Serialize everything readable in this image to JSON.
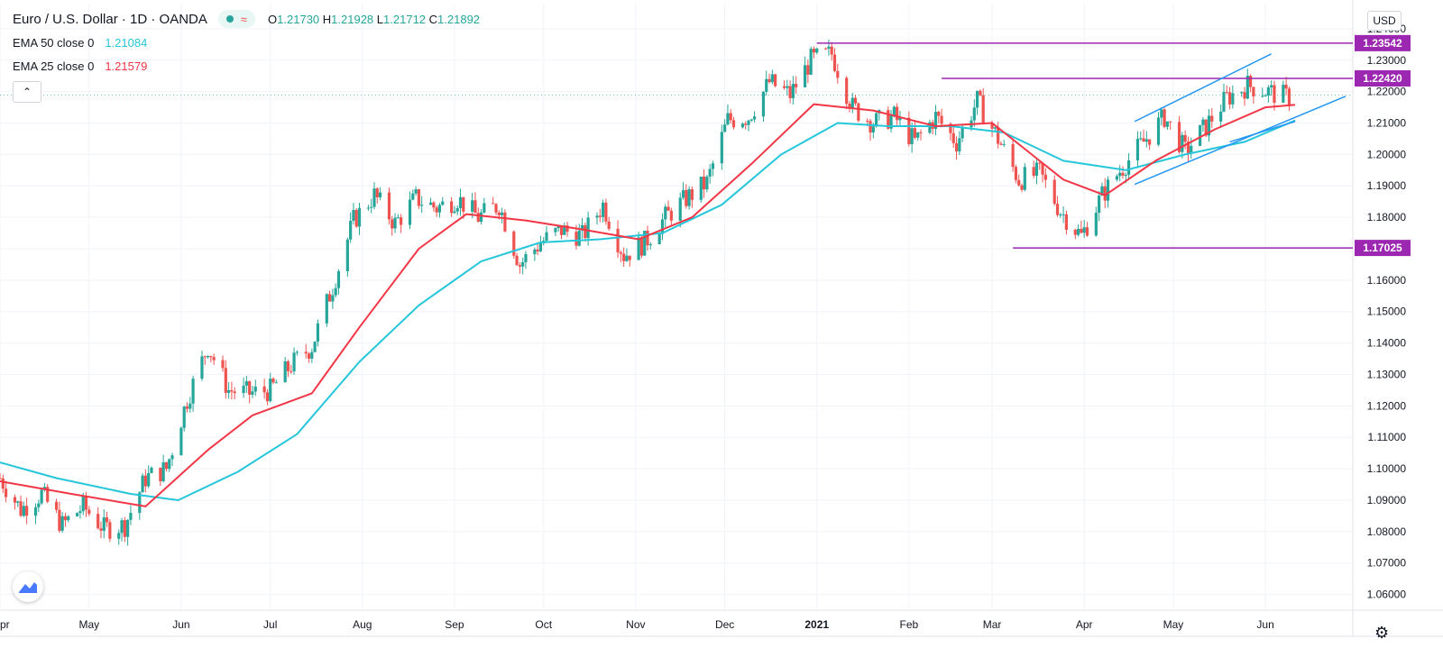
{
  "legend": {
    "symbol": "Euro / U.S. Dollar · 1D · OANDA",
    "ohlc": {
      "o_label": "O",
      "o": "1.21730",
      "h_label": "H",
      "h": "1.21928",
      "l_label": "L",
      "l": "1.21712",
      "c_label": "C",
      "c": "1.21892"
    },
    "ema50_label": "EMA 50 close 0",
    "ema50_value": "1.21084",
    "ema25_label": "EMA 25 close 0",
    "ema25_value": "1.21579",
    "collapse_icon": "chevron-up-icon"
  },
  "currency_button": "USD",
  "colors": {
    "up": "#26a69a",
    "down": "#ef5350",
    "ema50": "#26c6da",
    "ema25": "#f23645",
    "horizontal": "#9c27b0",
    "channel": "#2196f3"
  },
  "chart_data": {
    "type": "candlestick",
    "title": "Euro / U.S. Dollar · 1D · OANDA",
    "y_axis": {
      "min": 1.055,
      "max": 1.248,
      "ticks": [
        "1.24000",
        "1.23000",
        "1.22000",
        "1.21000",
        "1.20000",
        "1.19000",
        "1.18000",
        "1.17000",
        "1.16000",
        "1.15000",
        "1.14000",
        "1.13000",
        "1.12000",
        "1.11000",
        "1.10000",
        "1.09000",
        "1.08000",
        "1.07000",
        "1.06000"
      ]
    },
    "x_axis": {
      "start": "2020-04-01",
      "end": "2021-06-28",
      "ticks": [
        {
          "label": "pr",
          "date": "2020-04-01"
        },
        {
          "label": "May",
          "date": "2020-05-01"
        },
        {
          "label": "Jun",
          "date": "2020-06-01"
        },
        {
          "label": "Jul",
          "date": "2020-07-01"
        },
        {
          "label": "Aug",
          "date": "2020-08-01"
        },
        {
          "label": "Sep",
          "date": "2020-09-01"
        },
        {
          "label": "Oct",
          "date": "2020-10-01"
        },
        {
          "label": "Nov",
          "date": "2020-11-01"
        },
        {
          "label": "Dec",
          "date": "2020-12-01"
        },
        {
          "label": "2021",
          "date": "2021-01-01"
        },
        {
          "label": "Feb",
          "date": "2021-02-01"
        },
        {
          "label": "Mar",
          "date": "2021-03-01"
        },
        {
          "label": "Apr",
          "date": "2021-04-01"
        },
        {
          "label": "May",
          "date": "2021-05-01"
        },
        {
          "label": "Jun",
          "date": "2021-06-01"
        }
      ]
    },
    "price_series": {
      "name": "EURUSD close (approx.)",
      "points": [
        [
          "2020-04-01",
          1.097
        ],
        [
          "2020-04-08",
          1.087
        ],
        [
          "2020-04-15",
          1.092
        ],
        [
          "2020-04-22",
          1.082
        ],
        [
          "2020-04-29",
          1.088
        ],
        [
          "2020-05-06",
          1.081
        ],
        [
          "2020-05-13",
          1.082
        ],
        [
          "2020-05-20",
          1.097
        ],
        [
          "2020-05-27",
          1.1
        ],
        [
          "2020-06-03",
          1.122
        ],
        [
          "2020-06-10",
          1.139
        ],
        [
          "2020-06-17",
          1.125
        ],
        [
          "2020-06-24",
          1.124
        ],
        [
          "2020-07-01",
          1.125
        ],
        [
          "2020-07-08",
          1.133
        ],
        [
          "2020-07-15",
          1.139
        ],
        [
          "2020-07-22",
          1.158
        ],
        [
          "2020-07-29",
          1.179
        ],
        [
          "2020-08-05",
          1.187
        ],
        [
          "2020-08-12",
          1.178
        ],
        [
          "2020-08-19",
          1.186
        ],
        [
          "2020-08-26",
          1.183
        ],
        [
          "2020-09-02",
          1.186
        ],
        [
          "2020-09-09",
          1.18
        ],
        [
          "2020-09-16",
          1.184
        ],
        [
          "2020-09-23",
          1.165
        ],
        [
          "2020-09-30",
          1.172
        ],
        [
          "2020-10-07",
          1.176
        ],
        [
          "2020-10-14",
          1.174
        ],
        [
          "2020-10-21",
          1.184
        ],
        [
          "2020-10-28",
          1.168
        ],
        [
          "2020-11-04",
          1.172
        ],
        [
          "2020-11-11",
          1.18
        ],
        [
          "2020-11-18",
          1.186
        ],
        [
          "2020-11-25",
          1.191
        ],
        [
          "2020-12-02",
          1.211
        ],
        [
          "2020-12-09",
          1.212
        ],
        [
          "2020-12-16",
          1.223
        ],
        [
          "2020-12-23",
          1.219
        ],
        [
          "2020-12-30",
          1.23
        ],
        [
          "2021-01-06",
          1.232
        ],
        [
          "2021-01-13",
          1.215
        ],
        [
          "2021-01-20",
          1.21
        ],
        [
          "2021-01-27",
          1.212
        ],
        [
          "2021-02-03",
          1.204
        ],
        [
          "2021-02-10",
          1.212
        ],
        [
          "2021-02-17",
          1.204
        ],
        [
          "2021-02-24",
          1.217
        ],
        [
          "2021-03-03",
          1.205
        ],
        [
          "2021-03-10",
          1.192
        ],
        [
          "2021-03-17",
          1.194
        ],
        [
          "2021-03-24",
          1.182
        ],
        [
          "2021-03-31",
          1.174
        ],
        [
          "2021-04-07",
          1.187
        ],
        [
          "2021-04-14",
          1.196
        ],
        [
          "2021-04-21",
          1.204
        ],
        [
          "2021-04-28",
          1.212
        ],
        [
          "2021-05-05",
          1.201
        ],
        [
          "2021-05-12",
          1.209
        ],
        [
          "2021-05-19",
          1.218
        ],
        [
          "2021-05-26",
          1.222
        ],
        [
          "2021-06-02",
          1.22
        ],
        [
          "2021-06-09",
          1.218
        ]
      ]
    },
    "ema50": {
      "name": "EMA 50 close 0",
      "points": [
        [
          "2020-04-01",
          1.102
        ],
        [
          "2020-04-20",
          1.097
        ],
        [
          "2020-05-15",
          1.092
        ],
        [
          "2020-05-31",
          1.09
        ],
        [
          "2020-06-20",
          1.099
        ],
        [
          "2020-07-10",
          1.111
        ],
        [
          "2020-07-31",
          1.134
        ],
        [
          "2020-08-20",
          1.152
        ],
        [
          "2020-09-10",
          1.166
        ],
        [
          "2020-09-30",
          1.172
        ],
        [
          "2020-10-20",
          1.173
        ],
        [
          "2020-11-10",
          1.175
        ],
        [
          "2020-11-30",
          1.184
        ],
        [
          "2020-12-20",
          1.2
        ],
        [
          "2021-01-08",
          1.21
        ],
        [
          "2021-01-25",
          1.209
        ],
        [
          "2021-02-15",
          1.209
        ],
        [
          "2021-03-05",
          1.207
        ],
        [
          "2021-03-25",
          1.198
        ],
        [
          "2021-04-15",
          1.195
        ],
        [
          "2021-05-05",
          1.2
        ],
        [
          "2021-05-25",
          1.204
        ],
        [
          "2021-06-11",
          1.2108
        ]
      ]
    },
    "ema25": {
      "name": "EMA 25 close 0",
      "points": [
        [
          "2020-04-01",
          1.096
        ],
        [
          "2020-04-25",
          1.092
        ],
        [
          "2020-05-20",
          1.088
        ],
        [
          "2020-06-10",
          1.106
        ],
        [
          "2020-06-25",
          1.117
        ],
        [
          "2020-07-15",
          1.124
        ],
        [
          "2020-07-31",
          1.145
        ],
        [
          "2020-08-20",
          1.17
        ],
        [
          "2020-09-05",
          1.181
        ],
        [
          "2020-09-25",
          1.179
        ],
        [
          "2020-10-15",
          1.176
        ],
        [
          "2020-11-02",
          1.173
        ],
        [
          "2020-11-20",
          1.18
        ],
        [
          "2020-12-10",
          1.197
        ],
        [
          "2020-12-31",
          1.216
        ],
        [
          "2021-01-20",
          1.214
        ],
        [
          "2021-02-10",
          1.209
        ],
        [
          "2021-03-01",
          1.21
        ],
        [
          "2021-03-25",
          1.192
        ],
        [
          "2021-04-08",
          1.187
        ],
        [
          "2021-04-25",
          1.198
        ],
        [
          "2021-05-15",
          1.208
        ],
        [
          "2021-06-01",
          1.215
        ],
        [
          "2021-06-11",
          1.2158
        ]
      ]
    },
    "horizontal_levels": [
      {
        "price": 1.23542,
        "label": "1.23542",
        "from": "2021-01-01"
      },
      {
        "price": 1.2242,
        "label": "1.22420",
        "from": "2021-02-12"
      },
      {
        "price": 1.17025,
        "label": "1.17025",
        "from": "2021-03-08"
      }
    ],
    "channel_lines": [
      {
        "from": [
          "2021-04-18",
          1.2105
        ],
        "to": [
          "2021-06-03",
          1.232
        ]
      },
      {
        "from": [
          "2021-04-18",
          1.1905
        ],
        "to": [
          "2021-06-28",
          1.2185
        ]
      },
      {
        "from": [
          "2021-05-20",
          1.204
        ],
        "to": [
          "2021-06-11",
          1.2105
        ]
      }
    ],
    "last_price": 1.21892
  }
}
